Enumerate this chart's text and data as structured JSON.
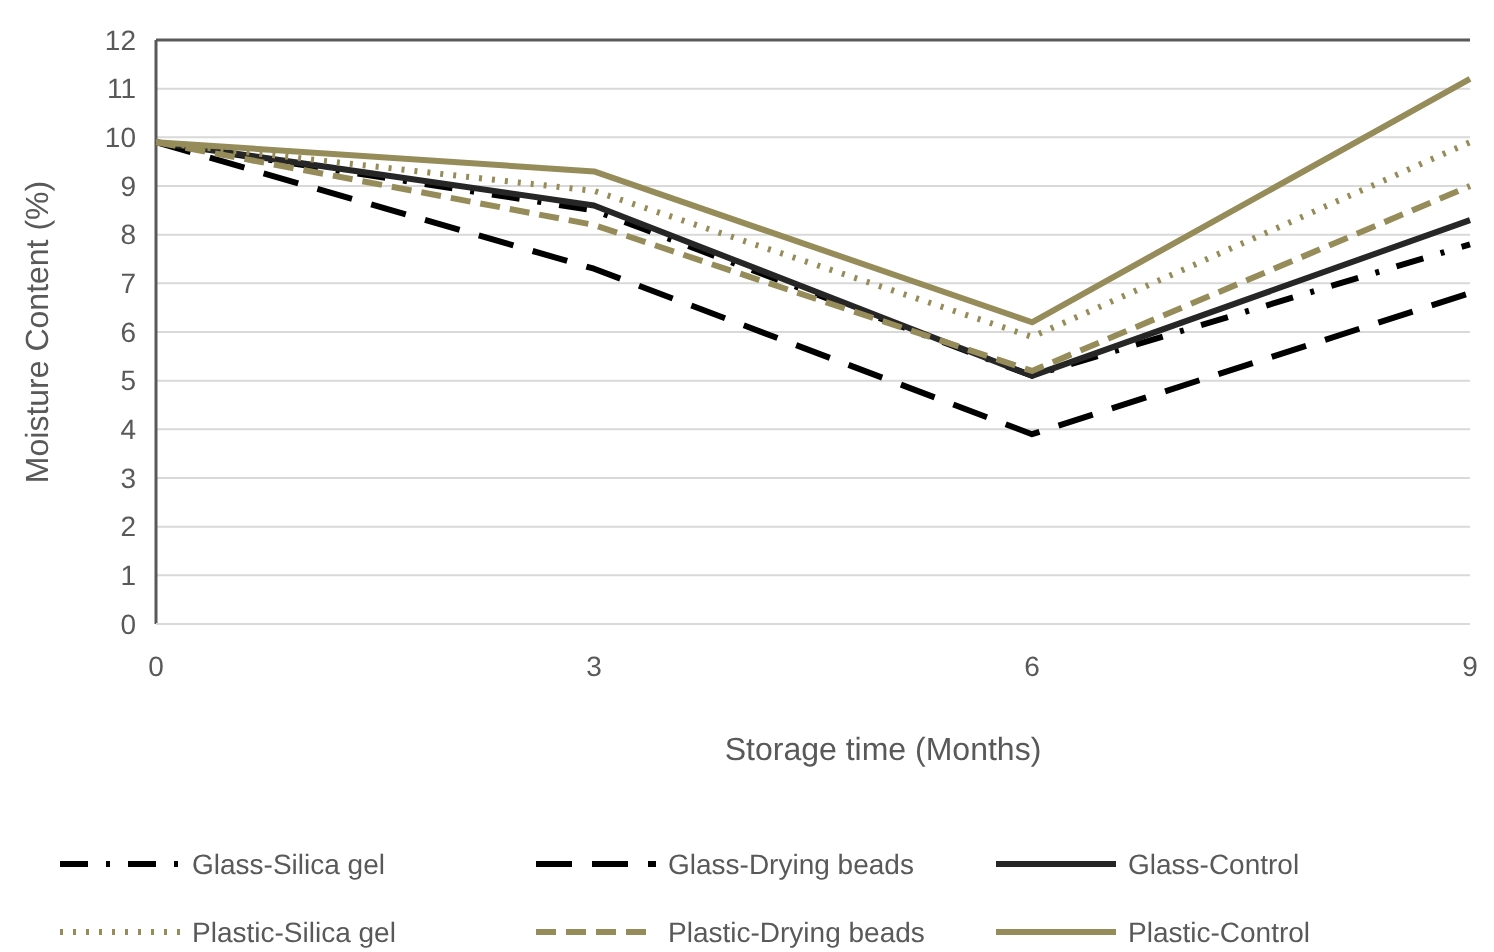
{
  "chart_data": {
    "type": "line",
    "xlabel": "Storage time  (Months)",
    "ylabel": "Moisture Content (%)",
    "x": [
      0,
      3,
      6,
      9
    ],
    "xlim": [
      0,
      9
    ],
    "xticks": [
      0,
      3,
      6,
      9
    ],
    "ylim": [
      0,
      12
    ],
    "yticks": [
      0,
      1,
      2,
      3,
      4,
      5,
      6,
      7,
      8,
      9,
      10,
      11,
      12
    ],
    "grid": "y",
    "legend": "bottom",
    "marker": "none",
    "series": [
      {
        "name": "Glass-Silica gel",
        "color": "#000000",
        "line_style": "dashdot",
        "values": [
          9.9,
          8.5,
          5.1,
          7.8
        ]
      },
      {
        "name": "Glass-Drying beads",
        "color": "#000000",
        "line_style": "longdash",
        "values": [
          9.9,
          7.3,
          3.9,
          6.8
        ]
      },
      {
        "name": "Glass-Control",
        "color": "#262626",
        "line_style": "solid",
        "values": [
          9.9,
          8.6,
          5.1,
          8.3
        ]
      },
      {
        "name": "Plastic-Silica gel",
        "color": "#968c5a",
        "line_style": "dotted",
        "values": [
          9.9,
          8.9,
          5.9,
          9.9
        ]
      },
      {
        "name": "Plastic-Drying beads",
        "color": "#968c5a",
        "line_style": "dashed",
        "values": [
          9.9,
          8.2,
          5.2,
          9.0
        ]
      },
      {
        "name": "Plastic-Control",
        "color": "#968c5a",
        "line_style": "solid",
        "values": [
          9.9,
          9.3,
          6.2,
          11.2
        ]
      }
    ]
  }
}
